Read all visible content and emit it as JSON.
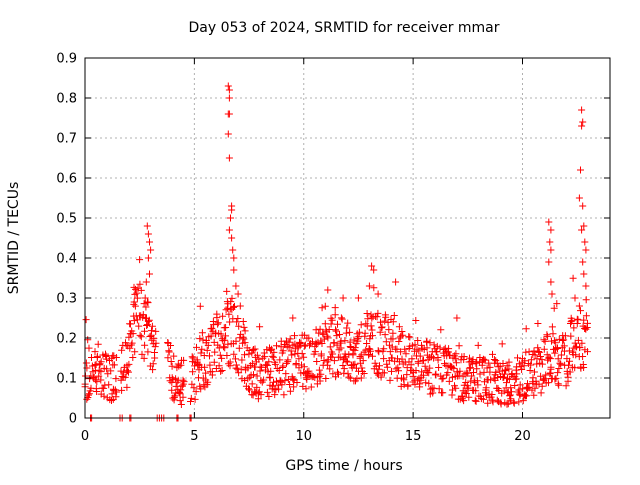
{
  "chart_data": {
    "type": "scatter",
    "title": "Day 053 of 2024, SRMTID for receiver mmar",
    "xlabel": "GPS time / hours",
    "ylabel": "SRMTID / TECUs",
    "xlim": [
      0,
      24
    ],
    "ylim": [
      0,
      0.9
    ],
    "x_ticks": [
      0,
      5,
      10,
      15,
      20
    ],
    "x_tick_labels": [
      "0",
      "5",
      "10",
      "15",
      "20"
    ],
    "y_ticks": [
      0,
      0.1,
      0.2,
      0.3,
      0.4,
      0.5,
      0.6,
      0.7,
      0.8,
      0.9
    ],
    "y_tick_labels": [
      "0",
      "0.1",
      "0.2",
      "0.3",
      "0.4",
      "0.5",
      "0.6",
      "0.7",
      "0.8",
      "0.9"
    ],
    "grid": true,
    "marker": "+",
    "colors": {
      "series": "#ff0000",
      "grid": "#b0b0b0",
      "axis": "#000000"
    },
    "series": [
      {
        "name": "SRMTID",
        "profile": [
          [
            0.0,
            0.11
          ],
          [
            0.3,
            0.1
          ],
          [
            0.6,
            0.11
          ],
          [
            0.9,
            0.12
          ],
          [
            1.2,
            0.1
          ],
          [
            1.5,
            0.1
          ],
          [
            1.8,
            0.13
          ],
          [
            2.0,
            0.16
          ],
          [
            2.2,
            0.23
          ],
          [
            2.5,
            0.25
          ],
          [
            2.8,
            0.22
          ],
          [
            3.0,
            0.2
          ],
          [
            3.3,
            0.14
          ],
          [
            3.6,
            0.13
          ],
          [
            3.9,
            0.13
          ],
          [
            4.1,
            0.1
          ],
          [
            4.3,
            0.08
          ],
          [
            4.7,
            0.09
          ],
          [
            5.0,
            0.1
          ],
          [
            5.3,
            0.14
          ],
          [
            5.7,
            0.16
          ],
          [
            6.0,
            0.18
          ],
          [
            6.3,
            0.2
          ],
          [
            6.6,
            0.22
          ],
          [
            6.9,
            0.2
          ],
          [
            7.2,
            0.17
          ],
          [
            7.5,
            0.13
          ],
          [
            7.8,
            0.11
          ],
          [
            8.1,
            0.1
          ],
          [
            8.5,
            0.12
          ],
          [
            9.0,
            0.12
          ],
          [
            9.5,
            0.14
          ],
          [
            10.0,
            0.14
          ],
          [
            10.5,
            0.15
          ],
          [
            11.0,
            0.17
          ],
          [
            11.5,
            0.18
          ],
          [
            12.0,
            0.17
          ],
          [
            12.5,
            0.17
          ],
          [
            13.0,
            0.19
          ],
          [
            13.5,
            0.18
          ],
          [
            14.0,
            0.17
          ],
          [
            14.5,
            0.15
          ],
          [
            15.0,
            0.13
          ],
          [
            15.5,
            0.13
          ],
          [
            16.0,
            0.12
          ],
          [
            16.5,
            0.12
          ],
          [
            17.0,
            0.11
          ],
          [
            17.5,
            0.1
          ],
          [
            18.0,
            0.1
          ],
          [
            18.5,
            0.09
          ],
          [
            19.0,
            0.09
          ],
          [
            19.5,
            0.09
          ],
          [
            20.0,
            0.1
          ],
          [
            20.5,
            0.12
          ],
          [
            21.0,
            0.13
          ],
          [
            21.3,
            0.16
          ],
          [
            21.6,
            0.14
          ],
          [
            22.0,
            0.15
          ],
          [
            22.3,
            0.19
          ],
          [
            22.6,
            0.2
          ],
          [
            22.8,
            0.18
          ],
          [
            23.0,
            0.18
          ]
        ],
        "spikes": [
          [
            2.85,
            0.48
          ],
          [
            2.9,
            0.46
          ],
          [
            2.95,
            0.44
          ],
          [
            3.0,
            0.42
          ],
          [
            2.9,
            0.4
          ],
          [
            2.95,
            0.36
          ],
          [
            2.8,
            0.34
          ],
          [
            2.75,
            0.3
          ],
          [
            2.25,
            0.29
          ],
          [
            6.55,
            0.83
          ],
          [
            6.6,
            0.82
          ],
          [
            6.6,
            0.8
          ],
          [
            6.55,
            0.76
          ],
          [
            6.6,
            0.76
          ],
          [
            6.55,
            0.71
          ],
          [
            6.6,
            0.65
          ],
          [
            6.7,
            0.53
          ],
          [
            6.7,
            0.52
          ],
          [
            6.65,
            0.5
          ],
          [
            6.6,
            0.47
          ],
          [
            6.7,
            0.45
          ],
          [
            6.75,
            0.42
          ],
          [
            6.8,
            0.4
          ],
          [
            6.8,
            0.37
          ],
          [
            6.9,
            0.33
          ],
          [
            7.0,
            0.31
          ],
          [
            7.1,
            0.28
          ],
          [
            13.1,
            0.38
          ],
          [
            13.2,
            0.37
          ],
          [
            13.0,
            0.33
          ],
          [
            13.4,
            0.31
          ],
          [
            12.5,
            0.3
          ],
          [
            14.2,
            0.34
          ],
          [
            11.8,
            0.3
          ],
          [
            11.1,
            0.32
          ],
          [
            17.0,
            0.25
          ],
          [
            9.5,
            0.25
          ],
          [
            21.2,
            0.49
          ],
          [
            21.3,
            0.47
          ],
          [
            21.25,
            0.44
          ],
          [
            21.3,
            0.42
          ],
          [
            21.2,
            0.39
          ],
          [
            21.3,
            0.34
          ],
          [
            21.35,
            0.31
          ],
          [
            22.7,
            0.77
          ],
          [
            22.75,
            0.74
          ],
          [
            22.7,
            0.73
          ],
          [
            22.65,
            0.62
          ],
          [
            22.6,
            0.55
          ],
          [
            22.75,
            0.53
          ],
          [
            22.8,
            0.48
          ],
          [
            22.7,
            0.47
          ],
          [
            22.85,
            0.44
          ],
          [
            22.9,
            0.42
          ],
          [
            22.75,
            0.39
          ],
          [
            22.8,
            0.36
          ],
          [
            22.9,
            0.33
          ],
          [
            22.4,
            0.3
          ],
          [
            22.6,
            0.28
          ]
        ],
        "zero_points": [
          0.25,
          0.3,
          1.6,
          1.7,
          2.05,
          2.1,
          3.3,
          3.4,
          3.5,
          3.6,
          4.2,
          4.25,
          4.8,
          4.85
        ]
      }
    ]
  }
}
